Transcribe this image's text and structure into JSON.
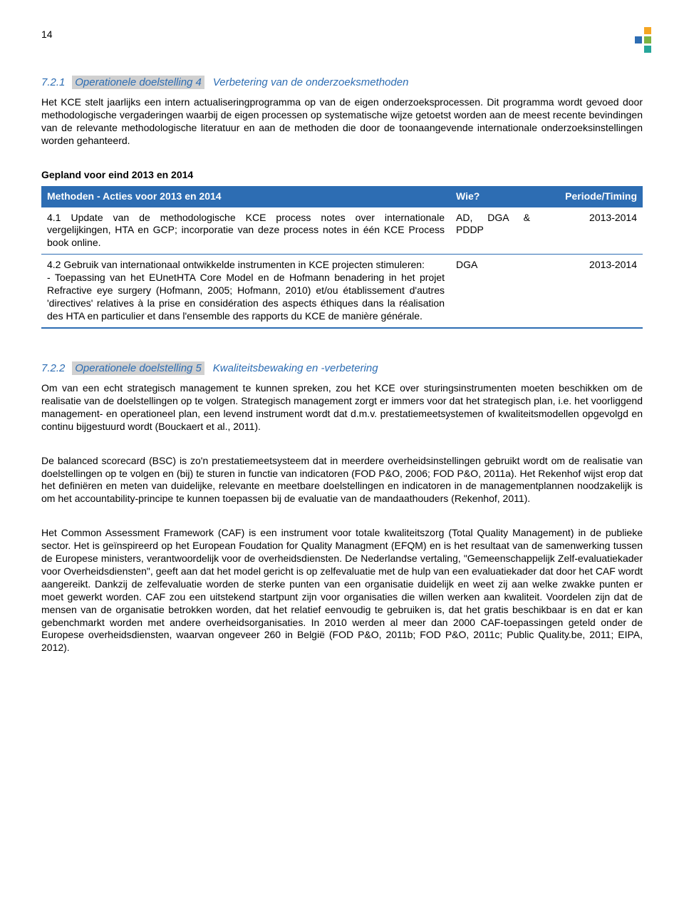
{
  "pageNumber": "14",
  "cornerColors": {
    "orange": "#f5a623",
    "blue": "#2d6db3",
    "green": "#7cb342",
    "teal": "#26a69a"
  },
  "section1": {
    "num": "7.2.1",
    "label": "Operationele doelstelling 4",
    "title": "Verbetering van de onderzoeksmethoden",
    "para": "Het KCE stelt jaarlijks een intern actualiseringprogramma op van de eigen onderzoeksprocessen. Dit programma wordt gevoed door methodologische vergaderingen waarbij de eigen processen op systematische wijze getoetst worden aan de meest recente bevindingen van de relevante methodologische literatuur en aan de methoden die door de toonaangevende internationale onderzoeksinstellingen worden gehanteerd."
  },
  "plannedHead": "Gepland voor eind 2013 en 2014",
  "table": {
    "headers": [
      "Methoden - Acties voor 2013 en 2014",
      "Wie?",
      "Periode/Timing"
    ],
    "rows": [
      {
        "c1": "4.1 Update van de methodologische KCE process notes over internationale vergelijkingen, HTA en GCP; incorporatie van deze process notes in één KCE Process book online.",
        "c2": "AD, DGA & PDDP",
        "c3": "2013-2014"
      },
      {
        "c1": "4.2 Gebruik van internationaal ontwikkelde instrumenten in KCE projecten stimuleren:\n- Toepassing van het EUnetHTA Core Model en de Hofmann benadering in het projet Refractive eye surgery (Hofmann, 2005; Hofmann, 2010) et/ou établissement d'autres 'directives' relatives à la prise en considération des aspects éthiques dans la réalisation des HTA en particulier et dans l'ensemble des rapports du KCE de manière générale.",
        "c2": "DGA",
        "c3": "2013-2014"
      }
    ]
  },
  "section2": {
    "num": "7.2.2",
    "label": "Operationele doelstelling 5",
    "title": "Kwaliteitsbewaking en -verbetering",
    "p1": "Om van een echt strategisch management te kunnen spreken, zou het KCE over sturingsinstrumenten moeten beschikken om de realisatie van de doelstellingen op te volgen. Strategisch management zorgt er immers voor dat het strategisch plan, i.e. het voorliggend management- en operationeel plan, een levend instrument wordt dat d.m.v. prestatiemeetsystemen of kwaliteitsmodellen opgevolgd en continu bijgestuurd wordt (Bouckaert et al., 2011).",
    "p2": "De balanced scorecard (BSC) is zo'n prestatiemeetsysteem dat in meerdere overheidsinstellingen gebruikt wordt om de realisatie van doelstellingen op te volgen en (bij) te sturen in functie van indicatoren (FOD P&O, 2006; FOD P&O, 2011a). Het Rekenhof wijst erop dat het definiëren en meten van duidelijke, relevante en meetbare doelstellingen en indicatoren in de managementplannen noodzakelijk is om het accountability-principe te kunnen toepassen bij de evaluatie van de mandaathouders (Rekenhof, 2011).",
    "p3": "Het Common Assessment Framework (CAF) is een instrument voor totale kwaliteitszorg (Total Quality Management) in de publieke sector. Het is geïnspireerd op het European Foudation for Quality Managment (EFQM) en is het resultaat van de samenwerking tussen de Europese ministers, verantwoordelijk voor de overheidsdiensten. De Nederlandse vertaling, \"Gemeenschappelijk Zelf-evaluatiekader voor Overheidsdiensten\", geeft aan dat het model gericht is op zelfevaluatie met de hulp van een evaluatiekader dat door het CAF wordt aangereikt. Dankzij de zelfevaluatie worden de sterke punten van een organisatie duidelijk en weet zij aan welke zwakke punten er moet gewerkt worden. CAF zou een uitstekend startpunt zijn voor organisaties die willen werken aan kwaliteit. Voordelen zijn dat de mensen van de organisatie betrokken worden, dat het relatief eenvoudig te gebruiken is, dat het gratis beschikbaar is en dat er kan gebenchmarkt worden met andere overheidsorganisaties. In 2010 werden al meer dan 2000 CAF-toepassingen geteld onder de Europese overheidsdiensten, waarvan ongeveer 260 in België (FOD P&O, 2011b; FOD P&O, 2011c; Public Quality.be, 2011; EIPA, 2012)."
  }
}
